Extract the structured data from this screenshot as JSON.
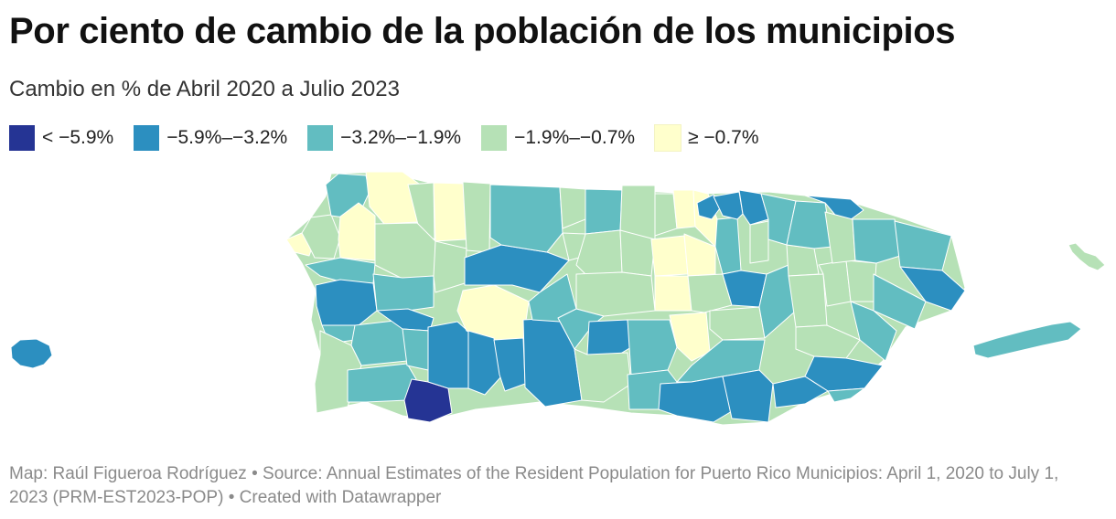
{
  "header": {
    "title": "Por ciento de cambio de la población de los municipios",
    "subtitle": "Cambio en % de Abril 2020 a Julio 2023"
  },
  "legend": {
    "items": [
      {
        "label": "< −5.9%",
        "color": "#253494"
      },
      {
        "label": "−5.9%–−3.2%",
        "color": "#2c8fc0"
      },
      {
        "label": "−3.2%–−1.9%",
        "color": "#62bdc1"
      },
      {
        "label": "−1.9%–−0.7%",
        "color": "#b6e1b6"
      },
      {
        "label": "≥ −0.7%",
        "color": "#ffffcc"
      }
    ]
  },
  "map": {
    "region": "Puerto Rico municipios",
    "islands": [
      "Mona",
      "Vieques",
      "Culebra"
    ]
  },
  "footer": {
    "map_credit": "Map: Raúl Figueroa Rodríguez",
    "source": "Source: Annual Estimates of the Resident Population for Puerto Rico Municipios: April 1, 2020 to July 1, 2023 (PRM-EST2023-POP)",
    "tool": "Created with Datawrapper",
    "separator": "•"
  }
}
